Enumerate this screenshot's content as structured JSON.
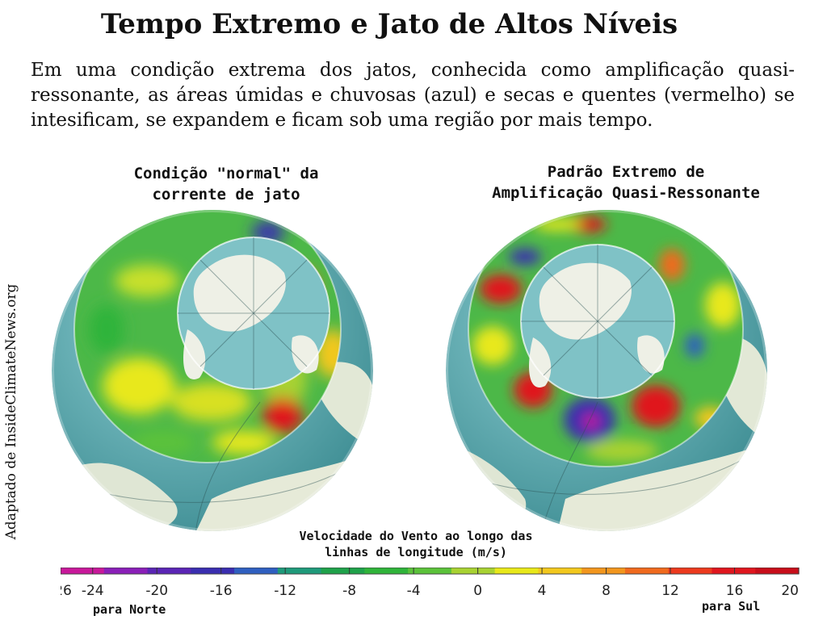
{
  "title": "Tempo Extremo e Jato de Altos Níveis",
  "intro": "Em uma condição extrema dos jatos, conhecida como amplificação quasi-ressonante, as áreas úmidas e chuvosas (azul) e secas e quentes (vermelho) se intesificam, se expandem e ficam sob uma região por mais tempo.",
  "credit": "Adaptado de InsideClimateNews.org",
  "globes": {
    "left": {
      "caption_line1": "Condição \"normal\" da",
      "caption_line2": "corrente de jato"
    },
    "right": {
      "caption_line1": "Padrão Extremo de",
      "caption_line2": "Amplificação Quasi-Ressonante"
    }
  },
  "colorbar": {
    "title_line1": "Velocidade do Vento ao longo das",
    "title_line2": "linhas de longitude (m/s)",
    "ticks": [
      "-26",
      "-24",
      "-20",
      "-16",
      "-12",
      "-8",
      "-4",
      "0",
      "4",
      "8",
      "12",
      "16",
      "20"
    ],
    "north_label": "para Norte",
    "south_label": "para Sul",
    "colors": [
      "#c8189a",
      "#8a1fb8",
      "#5a25b5",
      "#3a2eb0",
      "#2f5fc0",
      "#1f9a7a",
      "#1fa24a",
      "#2fb43a",
      "#5bc23a",
      "#a8d232",
      "#e8e81a",
      "#f2c81e",
      "#f2961e",
      "#f06a1e",
      "#ec3a1e",
      "#e0161e",
      "#c80e1a"
    ]
  }
}
